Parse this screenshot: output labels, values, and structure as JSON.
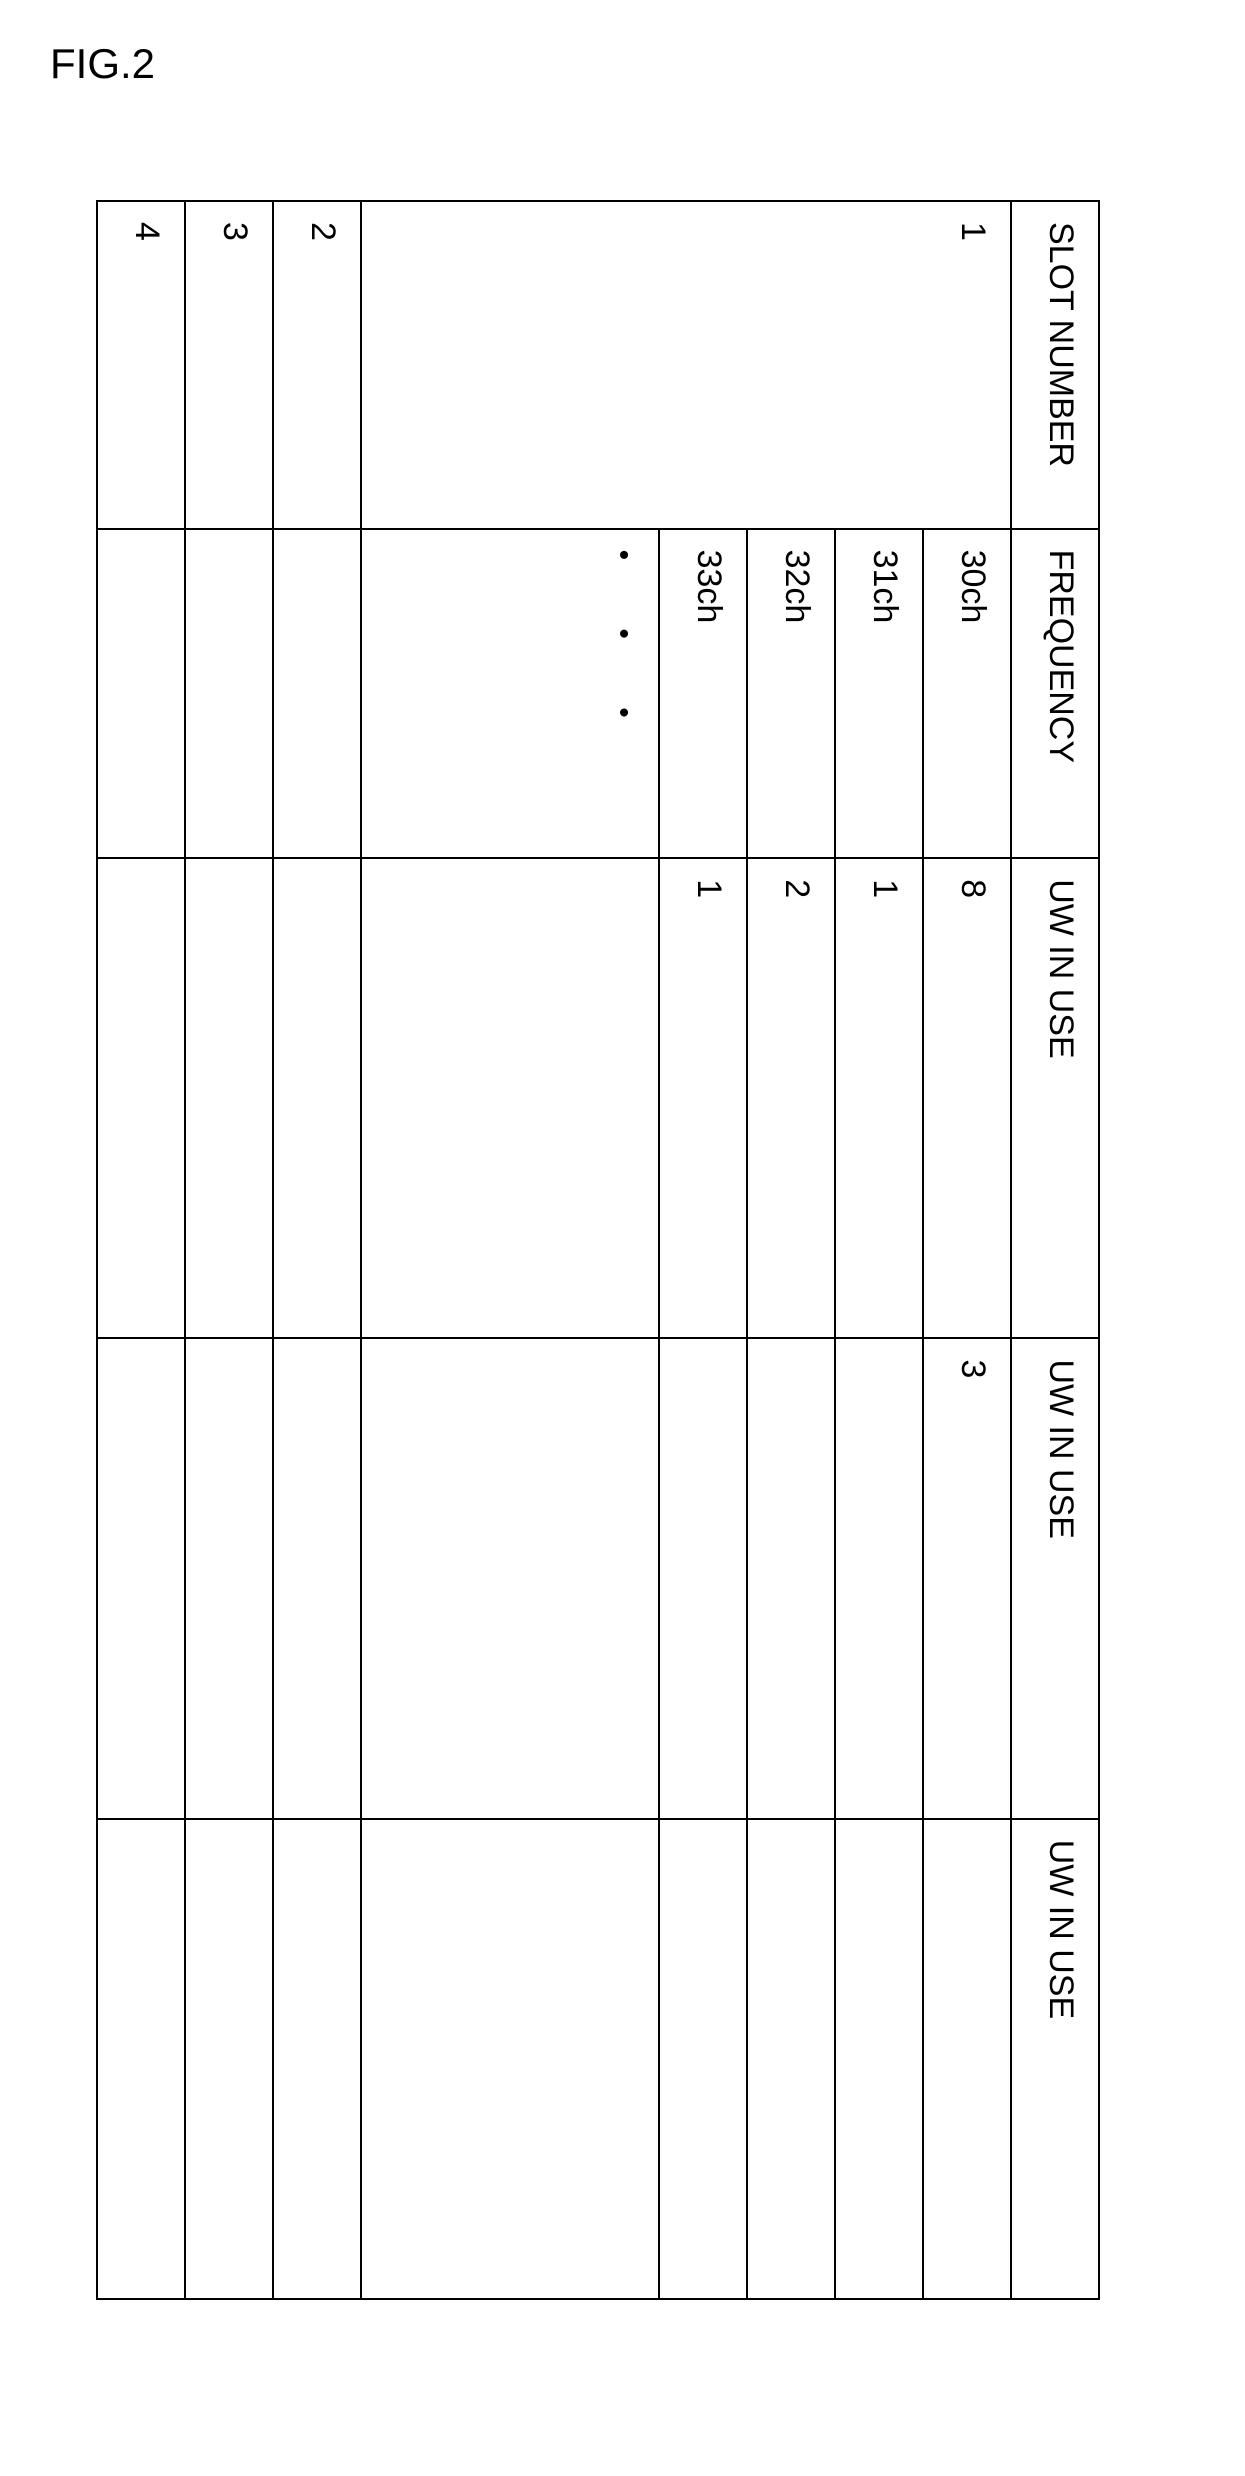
{
  "figure_label": "FIG.2",
  "table": {
    "columns": [
      "SLOT NUMBER",
      "FREQUENCY",
      "UW IN USE",
      "UW IN USE",
      "UW IN USE"
    ],
    "slot1": {
      "label": "1",
      "freq_rows": [
        {
          "freq": "30ch",
          "uw1": "8",
          "uw2": "3",
          "uw3": ""
        },
        {
          "freq": "31ch",
          "uw1": "1",
          "uw2": "",
          "uw3": ""
        },
        {
          "freq": "32ch",
          "uw1": "2",
          "uw2": "",
          "uw3": ""
        },
        {
          "freq": "33ch",
          "uw1": "1",
          "uw2": "",
          "uw3": ""
        }
      ],
      "ellipsis": "•   •   •"
    },
    "other_slots": [
      {
        "label": "2"
      },
      {
        "label": "3"
      },
      {
        "label": "4"
      }
    ]
  },
  "style": {
    "border_color": "#000000",
    "bg_color": "#ffffff",
    "text_color": "#000000",
    "header_fontsize": 34,
    "cell_fontsize": 34
  }
}
